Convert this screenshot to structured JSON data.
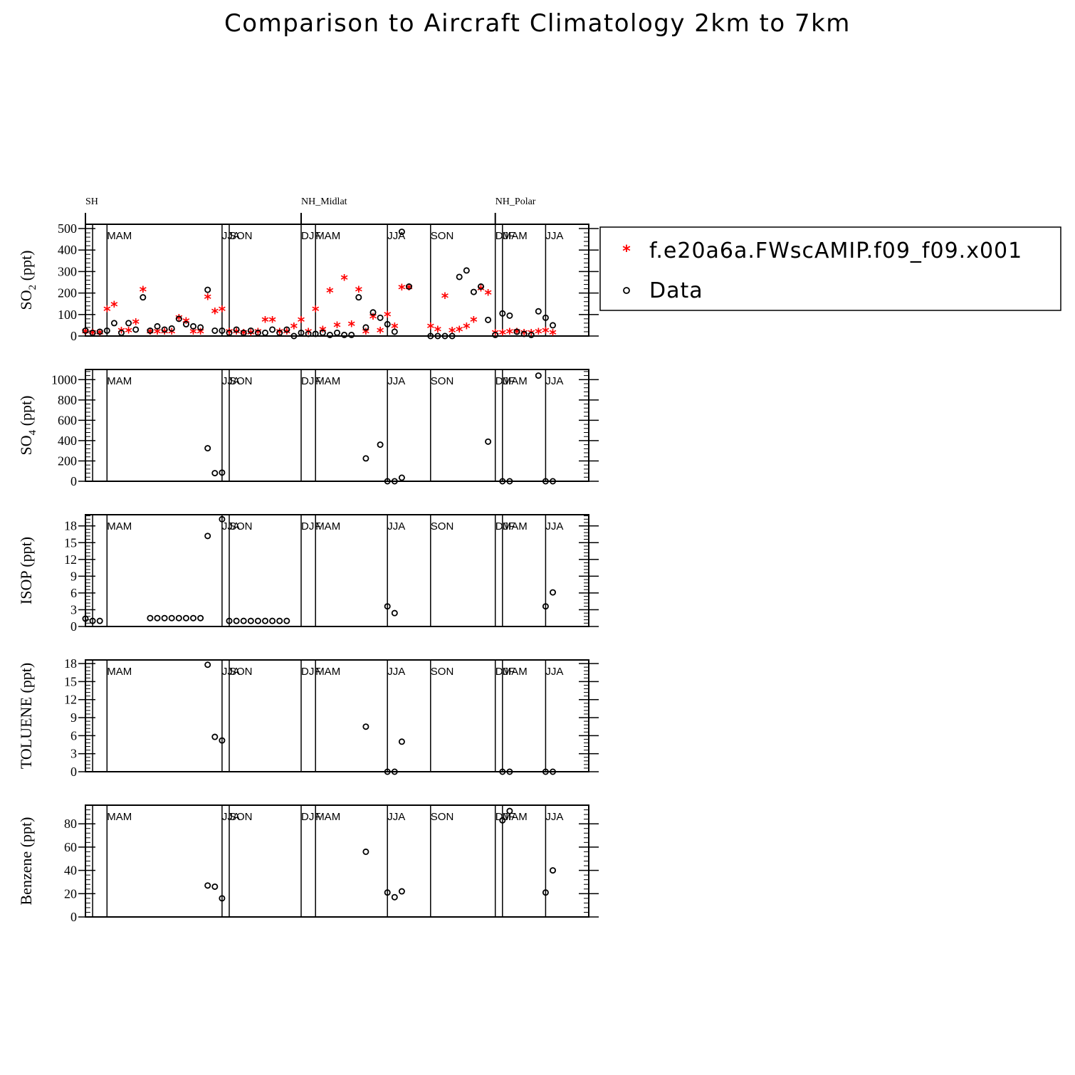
{
  "title": "Comparison to Aircraft Climatology  2km to 7km",
  "legend": {
    "items": [
      {
        "label": "f.e20a6a.FWscAMIP.f09_f09.x001",
        "marker": "asterisk",
        "color": "#ff0000"
      },
      {
        "label": "Data",
        "marker": "circle",
        "color": "#000000"
      }
    ]
  },
  "chart_data": {
    "type": "scatter",
    "x_range": [
      0,
      70
    ],
    "regions": [
      {
        "label": "SH",
        "x": 0
      },
      {
        "label": "NH_Midlat",
        "x": 30
      },
      {
        "label": "NH_Polar",
        "x": 57
      }
    ],
    "season_lines": [
      1,
      3,
      19,
      20,
      30,
      32,
      42,
      48,
      57,
      58,
      64
    ],
    "season_labels": [
      {
        "label": "MAM",
        "x": 3
      },
      {
        "label": "JJA",
        "x": 19
      },
      {
        "label": "SON",
        "x": 20
      },
      {
        "label": "DJF",
        "x": 30
      },
      {
        "label": "MAM",
        "x": 32
      },
      {
        "label": "JJA",
        "x": 42
      },
      {
        "label": "SON",
        "x": 48
      },
      {
        "label": "DJF",
        "x": 57
      },
      {
        "label": "MAM",
        "x": 58
      },
      {
        "label": "JJA",
        "x": 64
      }
    ],
    "panels": [
      {
        "ylabel": "SO",
        "ylabel_sub": "2",
        "ylabel_unit": " (ppt)",
        "ylim": [
          0,
          520
        ],
        "yticks": [
          0,
          100,
          200,
          300,
          400,
          500
        ],
        "model": [
          [
            0,
            15
          ],
          [
            1,
            10
          ],
          [
            2,
            10
          ],
          [
            3,
            120
          ],
          [
            4,
            140
          ],
          [
            5,
            20
          ],
          [
            6,
            20
          ],
          [
            7,
            60
          ],
          [
            8,
            210
          ],
          [
            9,
            15
          ],
          [
            10,
            15
          ],
          [
            11,
            15
          ],
          [
            12,
            15
          ],
          [
            13,
            80
          ],
          [
            14,
            65
          ],
          [
            15,
            15
          ],
          [
            16,
            15
          ],
          [
            17,
            175
          ],
          [
            18,
            110
          ],
          [
            19,
            120
          ],
          [
            20,
            15
          ],
          [
            21,
            15
          ],
          [
            22,
            10
          ],
          [
            23,
            10
          ],
          [
            24,
            15
          ],
          [
            25,
            70
          ],
          [
            26,
            70
          ],
          [
            27,
            15
          ],
          [
            28,
            15
          ],
          [
            29,
            40
          ],
          [
            30,
            70
          ],
          [
            31,
            15
          ],
          [
            32,
            120
          ],
          [
            33,
            25
          ],
          [
            34,
            205
          ],
          [
            35,
            45
          ],
          [
            36,
            265
          ],
          [
            37,
            50
          ],
          [
            38,
            210
          ],
          [
            39,
            15
          ],
          [
            40,
            85
          ],
          [
            41,
            20
          ],
          [
            42,
            95
          ],
          [
            43,
            40
          ],
          [
            44,
            220
          ],
          [
            45,
            220
          ],
          [
            48,
            40
          ],
          [
            49,
            25
          ],
          [
            50,
            180
          ],
          [
            51,
            20
          ],
          [
            52,
            25
          ],
          [
            53,
            40
          ],
          [
            54,
            70
          ],
          [
            55,
            215
          ],
          [
            56,
            195
          ],
          [
            57,
            10
          ],
          [
            58,
            10
          ],
          [
            59,
            15
          ],
          [
            60,
            15
          ],
          [
            61,
            10
          ],
          [
            62,
            10
          ],
          [
            63,
            15
          ],
          [
            64,
            20
          ],
          [
            65,
            10
          ]
        ],
        "data": [
          [
            0,
            25
          ],
          [
            1,
            15
          ],
          [
            2,
            20
          ],
          [
            3,
            25
          ],
          [
            4,
            60
          ],
          [
            5,
            15
          ],
          [
            6,
            60
          ],
          [
            7,
            30
          ],
          [
            8,
            180
          ],
          [
            9,
            25
          ],
          [
            10,
            45
          ],
          [
            11,
            30
          ],
          [
            12,
            35
          ],
          [
            13,
            80
          ],
          [
            14,
            55
          ],
          [
            15,
            45
          ],
          [
            16,
            40
          ],
          [
            17,
            215
          ],
          [
            18,
            25
          ],
          [
            19,
            25
          ],
          [
            20,
            15
          ],
          [
            21,
            30
          ],
          [
            22,
            15
          ],
          [
            23,
            25
          ],
          [
            24,
            15
          ],
          [
            25,
            15
          ],
          [
            26,
            30
          ],
          [
            27,
            15
          ],
          [
            28,
            30
          ],
          [
            29,
            0
          ],
          [
            30,
            15
          ],
          [
            31,
            10
          ],
          [
            32,
            10
          ],
          [
            33,
            15
          ],
          [
            34,
            5
          ],
          [
            35,
            15
          ],
          [
            36,
            5
          ],
          [
            37,
            5
          ],
          [
            38,
            180
          ],
          [
            39,
            40
          ],
          [
            40,
            110
          ],
          [
            41,
            85
          ],
          [
            42,
            55
          ],
          [
            43,
            20
          ],
          [
            44,
            485
          ],
          [
            45,
            230
          ],
          [
            48,
            0
          ],
          [
            49,
            0
          ],
          [
            50,
            0
          ],
          [
            51,
            0
          ],
          [
            52,
            275
          ],
          [
            53,
            305
          ],
          [
            54,
            205
          ],
          [
            55,
            230
          ],
          [
            56,
            75
          ],
          [
            57,
            5
          ],
          [
            58,
            105
          ],
          [
            59,
            95
          ],
          [
            60,
            20
          ],
          [
            61,
            10
          ],
          [
            62,
            5
          ],
          [
            63,
            115
          ],
          [
            64,
            85
          ],
          [
            65,
            50
          ]
        ]
      },
      {
        "ylabel": "SO",
        "ylabel_sub": "4",
        "ylabel_unit": " (ppt)",
        "ylim": [
          0,
          1100
        ],
        "yticks": [
          0,
          200,
          400,
          600,
          800,
          1000
        ],
        "model": [],
        "data": [
          [
            17,
            325
          ],
          [
            18,
            80
          ],
          [
            19,
            85
          ],
          [
            39,
            225
          ],
          [
            41,
            360
          ],
          [
            42,
            0
          ],
          [
            43,
            0
          ],
          [
            44,
            35
          ],
          [
            56,
            390
          ],
          [
            58,
            0
          ],
          [
            59,
            0
          ],
          [
            63,
            1040
          ],
          [
            64,
            0
          ],
          [
            65,
            0
          ]
        ]
      },
      {
        "ylabel": "ISOP",
        "ylabel_sub": "",
        "ylabel_unit": " (ppt)",
        "ylim": [
          0,
          20
        ],
        "yticks": [
          0,
          3,
          6,
          9,
          12,
          15,
          18
        ],
        "model": [],
        "data": [
          [
            0,
            1.4
          ],
          [
            1,
            1.0
          ],
          [
            2,
            1.0
          ],
          [
            9,
            1.5
          ],
          [
            10,
            1.5
          ],
          [
            11,
            1.5
          ],
          [
            12,
            1.5
          ],
          [
            13,
            1.5
          ],
          [
            14,
            1.5
          ],
          [
            15,
            1.5
          ],
          [
            16,
            1.5
          ],
          [
            17,
            16.2
          ],
          [
            19,
            19.2
          ],
          [
            20,
            1.0
          ],
          [
            21,
            1.0
          ],
          [
            22,
            1.0
          ],
          [
            23,
            1.0
          ],
          [
            24,
            1.0
          ],
          [
            25,
            1.0
          ],
          [
            26,
            1.0
          ],
          [
            27,
            1.0
          ],
          [
            28,
            1.0
          ],
          [
            42,
            3.6
          ],
          [
            43,
            2.4
          ],
          [
            64,
            3.6
          ],
          [
            65,
            6.1
          ]
        ]
      },
      {
        "ylabel": "TOLUENE",
        "ylabel_sub": "",
        "ylabel_unit": " (ppt)",
        "ylim": [
          0,
          18.6
        ],
        "yticks": [
          0,
          3,
          6,
          9,
          12,
          15,
          18
        ],
        "model": [],
        "data": [
          [
            17,
            17.8
          ],
          [
            18,
            5.8
          ],
          [
            19,
            5.2
          ],
          [
            39,
            7.5
          ],
          [
            42,
            0
          ],
          [
            43,
            0
          ],
          [
            44,
            5.0
          ],
          [
            58,
            0
          ],
          [
            59,
            0
          ],
          [
            64,
            0
          ],
          [
            65,
            0
          ]
        ]
      },
      {
        "ylabel": "Benzene",
        "ylabel_sub": "",
        "ylabel_unit": " (ppt)",
        "ylim": [
          0,
          96
        ],
        "yticks": [
          0,
          20,
          40,
          60,
          80
        ],
        "model": [],
        "data": [
          [
            17,
            27
          ],
          [
            18,
            26
          ],
          [
            19,
            16
          ],
          [
            39,
            56
          ],
          [
            42,
            21
          ],
          [
            43,
            17
          ],
          [
            44,
            22
          ],
          [
            58,
            83
          ],
          [
            59,
            91
          ],
          [
            64,
            21
          ],
          [
            65,
            40
          ]
        ]
      }
    ]
  }
}
